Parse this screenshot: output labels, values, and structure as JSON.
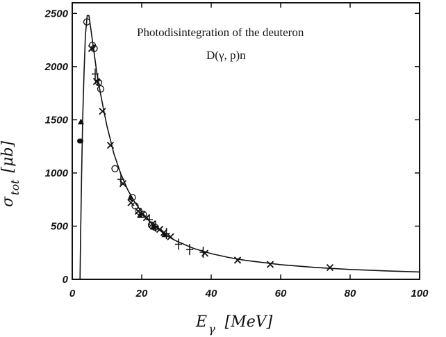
{
  "chart_data": {
    "type": "scatter",
    "title": "",
    "annotations": [
      "Photodisintegration of the deuteron",
      "D(γ, p)n"
    ],
    "xlabel": "E_γ [MeV]",
    "ylabel": "σ_tot [μb]",
    "x_axis": {
      "symbol": "E",
      "subscript": "γ",
      "unit": "[MeV]"
    },
    "y_axis": {
      "symbol": "σ",
      "subscript": "tot",
      "unit": "[μb]"
    },
    "xlim": [
      0,
      100
    ],
    "ylim": [
      0,
      2600
    ],
    "xticks": [
      0,
      20,
      40,
      60,
      80,
      100
    ],
    "yticks": [
      0,
      500,
      1000,
      1500,
      2000,
      2500
    ],
    "xtick_labels": [
      "0",
      "20",
      "40",
      "60",
      "80",
      "100"
    ],
    "ytick_labels": [
      "0",
      "500",
      "1000",
      "1500",
      "2000",
      "2500"
    ],
    "grid": false,
    "series": [
      {
        "marker": "curve",
        "points": [
          [
            2.23,
            0
          ],
          [
            2.4,
            400
          ],
          [
            2.7,
            1000
          ],
          [
            3.0,
            1500
          ],
          [
            3.4,
            1950
          ],
          [
            3.8,
            2300
          ],
          [
            4.3,
            2480
          ],
          [
            4.8,
            2480
          ],
          [
            5.5,
            2320
          ],
          [
            6.2,
            2150
          ],
          [
            7,
            1960
          ],
          [
            8,
            1770
          ],
          [
            9,
            1600
          ],
          [
            10,
            1440
          ],
          [
            12,
            1180
          ],
          [
            14,
            990
          ],
          [
            16,
            840
          ],
          [
            18,
            725
          ],
          [
            20,
            632
          ],
          [
            22,
            555
          ],
          [
            24,
            492
          ],
          [
            26,
            440
          ],
          [
            28,
            396
          ],
          [
            30,
            360
          ],
          [
            35,
            290
          ],
          [
            40,
            242
          ],
          [
            45,
            206
          ],
          [
            50,
            178
          ],
          [
            60,
            138
          ],
          [
            70,
            112
          ],
          [
            80,
            93
          ],
          [
            90,
            80
          ],
          [
            100,
            69
          ]
        ]
      },
      {
        "marker": "circle",
        "points": [
          [
            4.2,
            2420
          ],
          [
            5.8,
            2200
          ],
          [
            6.3,
            2170
          ],
          [
            7.6,
            1850
          ],
          [
            8.2,
            1790
          ],
          [
            12.3,
            1040
          ],
          [
            17.3,
            770
          ],
          [
            18.1,
            690
          ],
          [
            19.2,
            640
          ],
          [
            20.5,
            610
          ],
          [
            22.8,
            510
          ],
          [
            23.8,
            490
          ]
        ]
      },
      {
        "marker": "cross",
        "points": [
          [
            5.6,
            2170
          ],
          [
            7.0,
            1860
          ],
          [
            8.7,
            1580
          ],
          [
            11.0,
            1260
          ],
          [
            14.6,
            900
          ],
          [
            16.9,
            720
          ],
          [
            19.0,
            640
          ],
          [
            20.1,
            610
          ],
          [
            21.4,
            580
          ],
          [
            23.0,
            520
          ],
          [
            25.2,
            470
          ],
          [
            26.4,
            440
          ],
          [
            28.3,
            400
          ],
          [
            38.2,
            245
          ],
          [
            47.6,
            180
          ],
          [
            57.0,
            140
          ],
          [
            74.2,
            110
          ]
        ]
      },
      {
        "marker": "plus",
        "points": [
          [
            6.6,
            1930
          ],
          [
            7.3,
            1870
          ],
          [
            14.0,
            940
          ],
          [
            22.2,
            560
          ],
          [
            24.0,
            500
          ],
          [
            27.1,
            430
          ],
          [
            30.6,
            330
          ],
          [
            33.8,
            280
          ],
          [
            37.7,
            255
          ]
        ]
      },
      {
        "marker": "triangle",
        "points": [
          [
            2.5,
            1480
          ],
          [
            16.8,
            770
          ],
          [
            19.5,
            600
          ],
          [
            23.3,
            490
          ],
          [
            26.6,
            420
          ]
        ]
      },
      {
        "marker": "filled-circle",
        "points": [
          [
            2.1,
            1300
          ],
          [
            2.5,
            1300
          ]
        ]
      }
    ]
  }
}
